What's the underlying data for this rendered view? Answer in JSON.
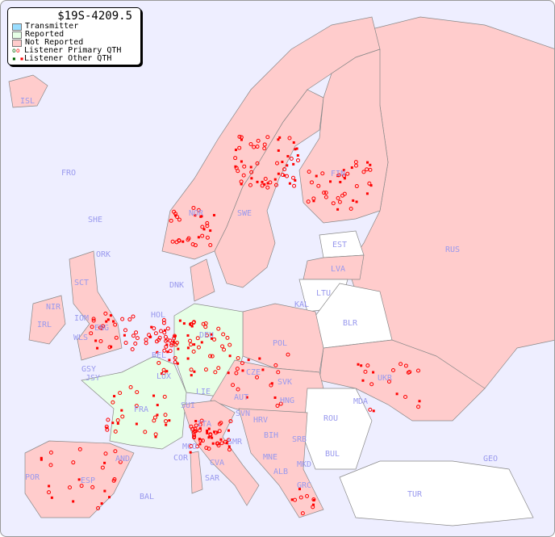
{
  "legend": {
    "title": "$19S-4209.5",
    "items": [
      {
        "label": "Transmitter",
        "color": "#99ddff"
      },
      {
        "label": "Reported",
        "color": "#e6ffe6"
      },
      {
        "label": "Not Reported",
        "color": "#ffcccc"
      },
      {
        "label": "Listener Primary QTH",
        "marker": "circle",
        "colors": [
          "#006600",
          "#ff0000"
        ]
      },
      {
        "label": "Listener Other QTH",
        "marker": "square",
        "colors": [
          "#006600",
          "#ff0000"
        ]
      }
    ]
  },
  "colors": {
    "sea": "#eeeeff",
    "reported": "#e6ffe6",
    "not_reported": "#ffcccc",
    "no_data": "#ffffff",
    "listener": "#ff0000",
    "label": "#9999ee"
  },
  "countries": [
    "ISL",
    "FRO",
    "SHE",
    "ORK",
    "NOR",
    "SWE",
    "FIN",
    "EST",
    "LVA",
    "LTU",
    "RUS",
    "DNK",
    "KAL",
    "BLR",
    "HOL",
    "DEU",
    "POL",
    "IRL",
    "SCT",
    "NIR",
    "IOM",
    "WLS",
    "ENG",
    "BEL",
    "LUX",
    "GSY",
    "JSY",
    "CZE",
    "SVK",
    "UKR",
    "FRA",
    "SUI",
    "LIE",
    "AUT",
    "HNG",
    "MDA",
    "SVN",
    "HRV",
    "ROU",
    "ITA",
    "BIH",
    "SRB",
    "SMR",
    "MCO",
    "COR",
    "MNE",
    "CVA",
    "BUL",
    "GEO",
    "AND",
    "ALB",
    "MKD",
    "POR",
    "ESP",
    "SAR",
    "BAL",
    "GRC",
    "TUR"
  ]
}
